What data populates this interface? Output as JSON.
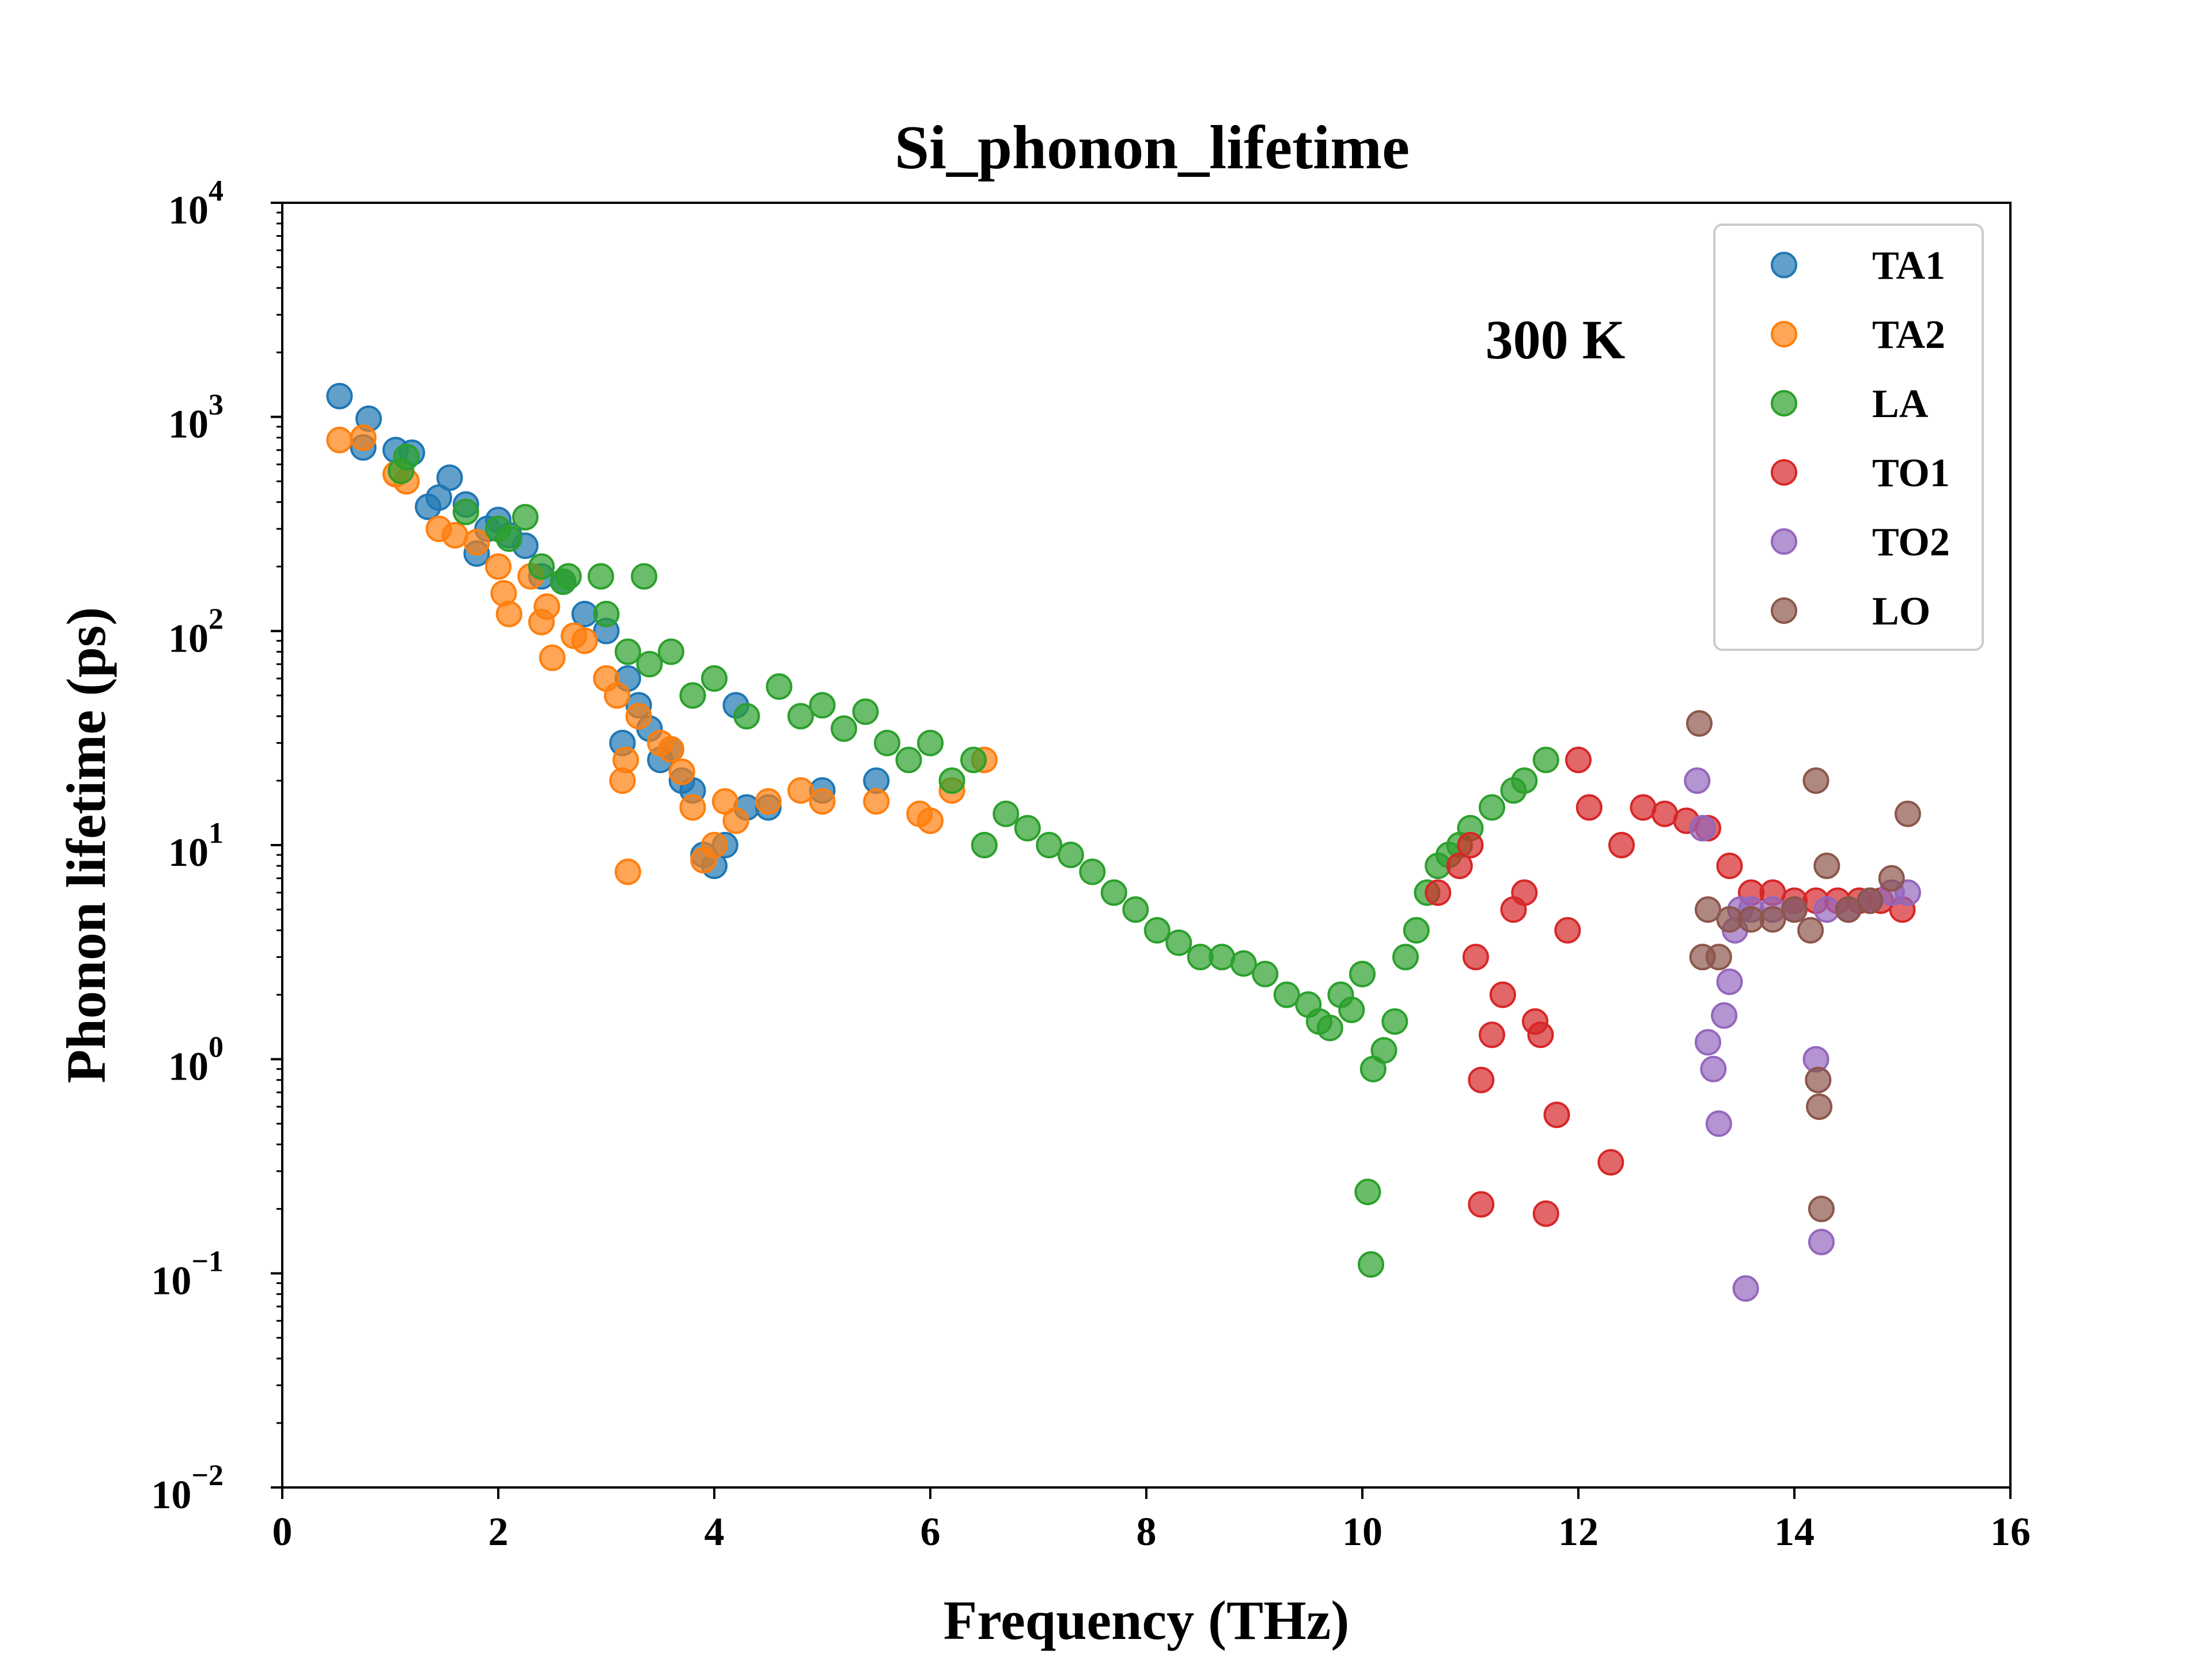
{
  "chart_data": {
    "type": "scatter",
    "title": "Si_phonon_lifetime",
    "xlabel": "Frequency (THz)",
    "ylabel": "Phonon lifetime (ps)",
    "xlim": [
      0,
      16
    ],
    "ylim": [
      0.01,
      10000
    ],
    "yscale": "log",
    "grid": false,
    "legend_position": "top-right",
    "annotation": "300 K",
    "xticks": [
      0,
      2,
      4,
      6,
      8,
      10,
      12,
      14,
      16
    ],
    "yticks": [
      {
        "value": 0.01,
        "base": "10",
        "exp": "−2"
      },
      {
        "value": 0.1,
        "base": "10",
        "exp": "−1"
      },
      {
        "value": 1,
        "base": "10",
        "exp": "0"
      },
      {
        "value": 10,
        "base": "10",
        "exp": "1"
      },
      {
        "value": 100,
        "base": "10",
        "exp": "2"
      },
      {
        "value": 1000,
        "base": "10",
        "exp": "3"
      },
      {
        "value": 10000,
        "base": "10",
        "exp": "4"
      }
    ],
    "series": [
      {
        "name": "TA1",
        "color": "#1f77b4",
        "points": [
          [
            0.53,
            1250
          ],
          [
            0.75,
            720
          ],
          [
            0.8,
            980
          ],
          [
            1.05,
            700
          ],
          [
            1.2,
            680
          ],
          [
            1.35,
            380
          ],
          [
            1.45,
            420
          ],
          [
            1.55,
            520
          ],
          [
            1.7,
            390
          ],
          [
            1.8,
            230
          ],
          [
            1.9,
            300
          ],
          [
            2.0,
            330
          ],
          [
            2.1,
            280
          ],
          [
            2.25,
            250
          ],
          [
            2.4,
            180
          ],
          [
            2.6,
            170
          ],
          [
            2.8,
            120
          ],
          [
            3.0,
            100
          ],
          [
            3.15,
            30
          ],
          [
            3.2,
            60
          ],
          [
            3.3,
            45
          ],
          [
            3.4,
            35
          ],
          [
            3.5,
            25
          ],
          [
            3.6,
            28
          ],
          [
            3.7,
            20
          ],
          [
            3.8,
            18
          ],
          [
            3.9,
            9
          ],
          [
            4.0,
            8
          ],
          [
            4.1,
            10
          ],
          [
            4.2,
            45
          ],
          [
            4.3,
            15
          ],
          [
            4.5,
            15
          ],
          [
            5.0,
            18
          ],
          [
            5.5,
            20
          ]
        ]
      },
      {
        "name": "TA2",
        "color": "#ff7f0e",
        "points": [
          [
            0.53,
            780
          ],
          [
            0.75,
            800
          ],
          [
            1.05,
            540
          ],
          [
            1.15,
            500
          ],
          [
            1.45,
            300
          ],
          [
            1.6,
            280
          ],
          [
            1.8,
            260
          ],
          [
            2.0,
            200
          ],
          [
            2.05,
            150
          ],
          [
            2.1,
            120
          ],
          [
            2.3,
            180
          ],
          [
            2.4,
            110
          ],
          [
            2.45,
            130
          ],
          [
            2.5,
            75
          ],
          [
            2.7,
            95
          ],
          [
            2.8,
            90
          ],
          [
            3.0,
            60
          ],
          [
            3.1,
            50
          ],
          [
            3.15,
            20
          ],
          [
            3.18,
            25
          ],
          [
            3.2,
            7.5
          ],
          [
            3.3,
            40
          ],
          [
            3.5,
            30
          ],
          [
            3.6,
            28
          ],
          [
            3.7,
            22
          ],
          [
            3.8,
            15
          ],
          [
            3.9,
            8.5
          ],
          [
            4.0,
            10
          ],
          [
            4.1,
            16
          ],
          [
            4.2,
            13
          ],
          [
            4.5,
            16
          ],
          [
            4.8,
            18
          ],
          [
            5.0,
            16
          ],
          [
            5.5,
            16
          ],
          [
            5.9,
            14
          ],
          [
            6.0,
            13
          ],
          [
            6.2,
            18
          ],
          [
            6.5,
            25
          ]
        ]
      },
      {
        "name": "LA",
        "color": "#2ca02c",
        "points": [
          [
            1.1,
            560
          ],
          [
            1.15,
            650
          ],
          [
            1.7,
            360
          ],
          [
            2.0,
            300
          ],
          [
            2.1,
            270
          ],
          [
            2.25,
            340
          ],
          [
            2.4,
            200
          ],
          [
            2.6,
            170
          ],
          [
            2.65,
            180
          ],
          [
            2.95,
            180
          ],
          [
            3.0,
            120
          ],
          [
            3.2,
            80
          ],
          [
            3.35,
            180
          ],
          [
            3.4,
            70
          ],
          [
            3.6,
            80
          ],
          [
            3.8,
            50
          ],
          [
            4.0,
            60
          ],
          [
            4.3,
            40
          ],
          [
            4.6,
            55
          ],
          [
            4.8,
            40
          ],
          [
            5.0,
            45
          ],
          [
            5.2,
            35
          ],
          [
            5.4,
            42
          ],
          [
            5.6,
            30
          ],
          [
            5.8,
            25
          ],
          [
            6.0,
            30
          ],
          [
            6.2,
            20
          ],
          [
            6.4,
            25
          ],
          [
            6.5,
            10
          ],
          [
            6.7,
            14
          ],
          [
            6.9,
            12
          ],
          [
            7.1,
            10
          ],
          [
            7.3,
            9
          ],
          [
            7.5,
            7.5
          ],
          [
            7.7,
            6
          ],
          [
            7.9,
            5
          ],
          [
            8.1,
            4
          ],
          [
            8.3,
            3.5
          ],
          [
            8.5,
            3
          ],
          [
            8.7,
            3
          ],
          [
            8.9,
            2.8
          ],
          [
            9.1,
            2.5
          ],
          [
            9.3,
            2
          ],
          [
            9.5,
            1.8
          ],
          [
            9.6,
            1.5
          ],
          [
            9.7,
            1.4
          ],
          [
            9.8,
            2
          ],
          [
            9.9,
            1.7
          ],
          [
            10.0,
            2.5
          ],
          [
            10.05,
            0.24
          ],
          [
            10.08,
            0.11
          ],
          [
            10.1,
            0.9
          ],
          [
            10.2,
            1.1
          ],
          [
            10.3,
            1.5
          ],
          [
            10.4,
            3
          ],
          [
            10.5,
            4
          ],
          [
            10.6,
            6
          ],
          [
            10.7,
            8
          ],
          [
            10.8,
            9
          ],
          [
            10.9,
            10
          ],
          [
            11.0,
            12
          ],
          [
            11.2,
            15
          ],
          [
            11.4,
            18
          ],
          [
            11.5,
            20
          ],
          [
            11.7,
            25
          ]
        ]
      },
      {
        "name": "TO1",
        "color": "#d62728",
        "points": [
          [
            10.7,
            6
          ],
          [
            10.9,
            8
          ],
          [
            11.0,
            10
          ],
          [
            11.05,
            3
          ],
          [
            11.1,
            0.8
          ],
          [
            11.1,
            0.21
          ],
          [
            11.2,
            1.3
          ],
          [
            11.3,
            2
          ],
          [
            11.4,
            5
          ],
          [
            11.5,
            6
          ],
          [
            11.6,
            1.5
          ],
          [
            11.65,
            1.3
          ],
          [
            11.7,
            0.19
          ],
          [
            11.8,
            0.55
          ],
          [
            11.9,
            4
          ],
          [
            12.0,
            25
          ],
          [
            12.1,
            15
          ],
          [
            12.3,
            0.33
          ],
          [
            12.4,
            10
          ],
          [
            12.6,
            15
          ],
          [
            12.8,
            14
          ],
          [
            13.0,
            13
          ],
          [
            13.2,
            12
          ],
          [
            13.4,
            8
          ],
          [
            13.6,
            6
          ],
          [
            13.8,
            6
          ],
          [
            14.0,
            5.5
          ],
          [
            14.2,
            5.5
          ],
          [
            14.4,
            5.5
          ],
          [
            14.6,
            5.5
          ],
          [
            14.8,
            5.5
          ],
          [
            15.0,
            5
          ]
        ]
      },
      {
        "name": "TO2",
        "color": "#9467bd",
        "points": [
          [
            13.1,
            20
          ],
          [
            13.15,
            12
          ],
          [
            13.2,
            1.2
          ],
          [
            13.25,
            0.9
          ],
          [
            13.3,
            0.5
          ],
          [
            13.35,
            1.6
          ],
          [
            13.4,
            2.3
          ],
          [
            13.45,
            4
          ],
          [
            13.5,
            5
          ],
          [
            13.55,
            0.085
          ],
          [
            13.6,
            5
          ],
          [
            13.8,
            5
          ],
          [
            14.0,
            5
          ],
          [
            14.2,
            1
          ],
          [
            14.25,
            0.14
          ],
          [
            14.3,
            5
          ],
          [
            14.5,
            5
          ],
          [
            14.7,
            5.5
          ],
          [
            14.9,
            6
          ],
          [
            15.05,
            6
          ]
        ]
      },
      {
        "name": "LO",
        "color": "#8c564b",
        "points": [
          [
            13.12,
            37
          ],
          [
            13.15,
            3
          ],
          [
            13.2,
            5
          ],
          [
            13.3,
            3
          ],
          [
            13.4,
            4.5
          ],
          [
            13.6,
            4.5
          ],
          [
            13.8,
            4.5
          ],
          [
            14.0,
            5
          ],
          [
            14.15,
            4
          ],
          [
            14.2,
            20
          ],
          [
            14.22,
            0.8
          ],
          [
            14.23,
            0.6
          ],
          [
            14.25,
            0.2
          ],
          [
            14.3,
            8
          ],
          [
            14.5,
            5
          ],
          [
            14.7,
            5.5
          ],
          [
            14.9,
            7
          ],
          [
            15.05,
            14
          ]
        ]
      }
    ]
  }
}
